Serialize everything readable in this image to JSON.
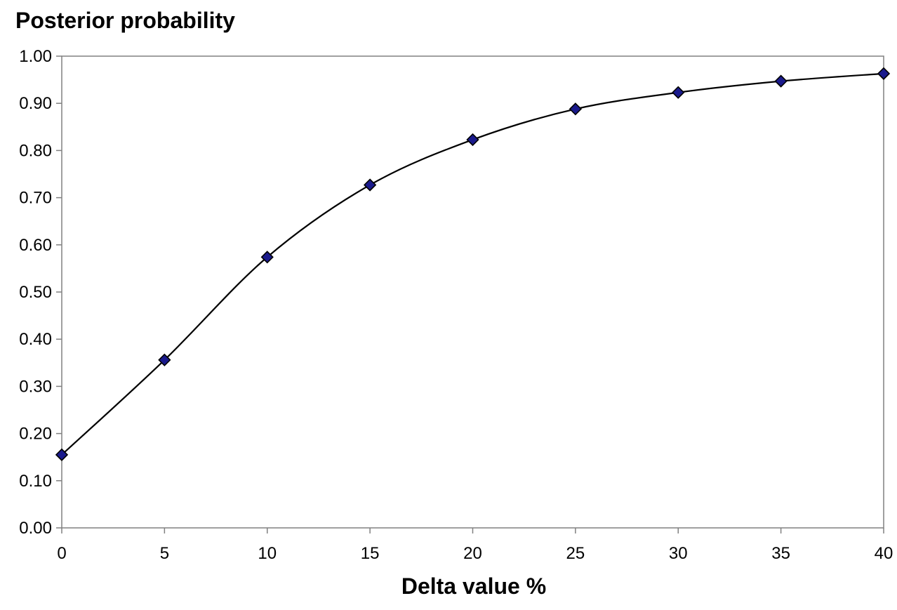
{
  "chart_data": {
    "type": "line",
    "title": "",
    "xlabel": "Delta value %",
    "ylabel": "Posterior probability",
    "xlim": [
      0,
      40
    ],
    "ylim": [
      0,
      1
    ],
    "x_ticks": [
      "0",
      "5",
      "10",
      "15",
      "20",
      "25",
      "30",
      "35",
      "40"
    ],
    "y_ticks": [
      "0.00",
      "0.10",
      "0.20",
      "0.30",
      "0.40",
      "0.50",
      "0.60",
      "0.70",
      "0.80",
      "0.90",
      "1.00"
    ],
    "grid": false,
    "legend": "none",
    "marker": "diamond",
    "series": [
      {
        "x": [
          0,
          5,
          10,
          15,
          20,
          25,
          30,
          35,
          40
        ],
        "values": [
          0.155,
          0.356,
          0.574,
          0.727,
          0.823,
          0.888,
          0.923,
          0.947,
          0.963
        ]
      }
    ],
    "colors": {
      "line": "#000000",
      "marker_fill": "#1a1a8c",
      "marker_stroke": "#000000",
      "axis": "#808080",
      "background": "#ffffff"
    }
  }
}
